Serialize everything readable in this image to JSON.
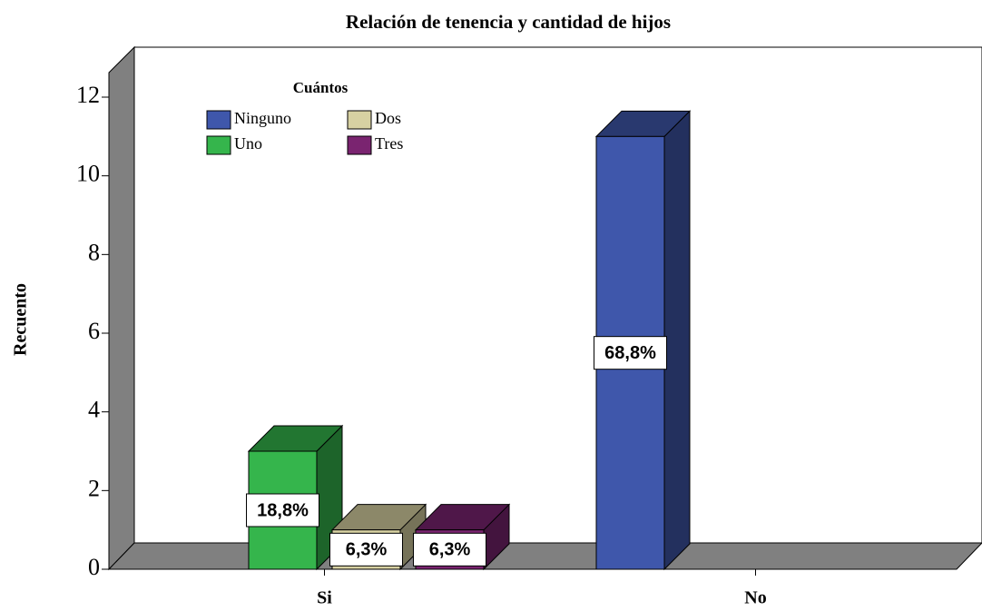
{
  "chart_data": {
    "type": "bar3d",
    "title": "Relación de tenencia y cantidad de hijos",
    "y_label": "Recuento",
    "legend_title": "Cuántos",
    "categories": [
      "Si",
      "No"
    ],
    "series": [
      {
        "name": "Ninguno",
        "color": "#3f57ab",
        "values": [
          null,
          11
        ],
        "percent_labels": [
          null,
          "68,8%"
        ]
      },
      {
        "name": "Uno",
        "color": "#35b54c",
        "values": [
          3,
          null
        ],
        "percent_labels": [
          "18,8%",
          null
        ]
      },
      {
        "name": "Dos",
        "color": "#d7d1a2",
        "values": [
          1,
          null
        ],
        "percent_labels": [
          "6,3%",
          null
        ]
      },
      {
        "name": "Tres",
        "color": "#7a2470",
        "values": [
          1,
          null
        ],
        "percent_labels": [
          "6,3%",
          null
        ]
      }
    ],
    "ylim": [
      0,
      12
    ],
    "yticks": [
      0,
      2,
      4,
      6,
      8,
      10,
      12
    ]
  }
}
